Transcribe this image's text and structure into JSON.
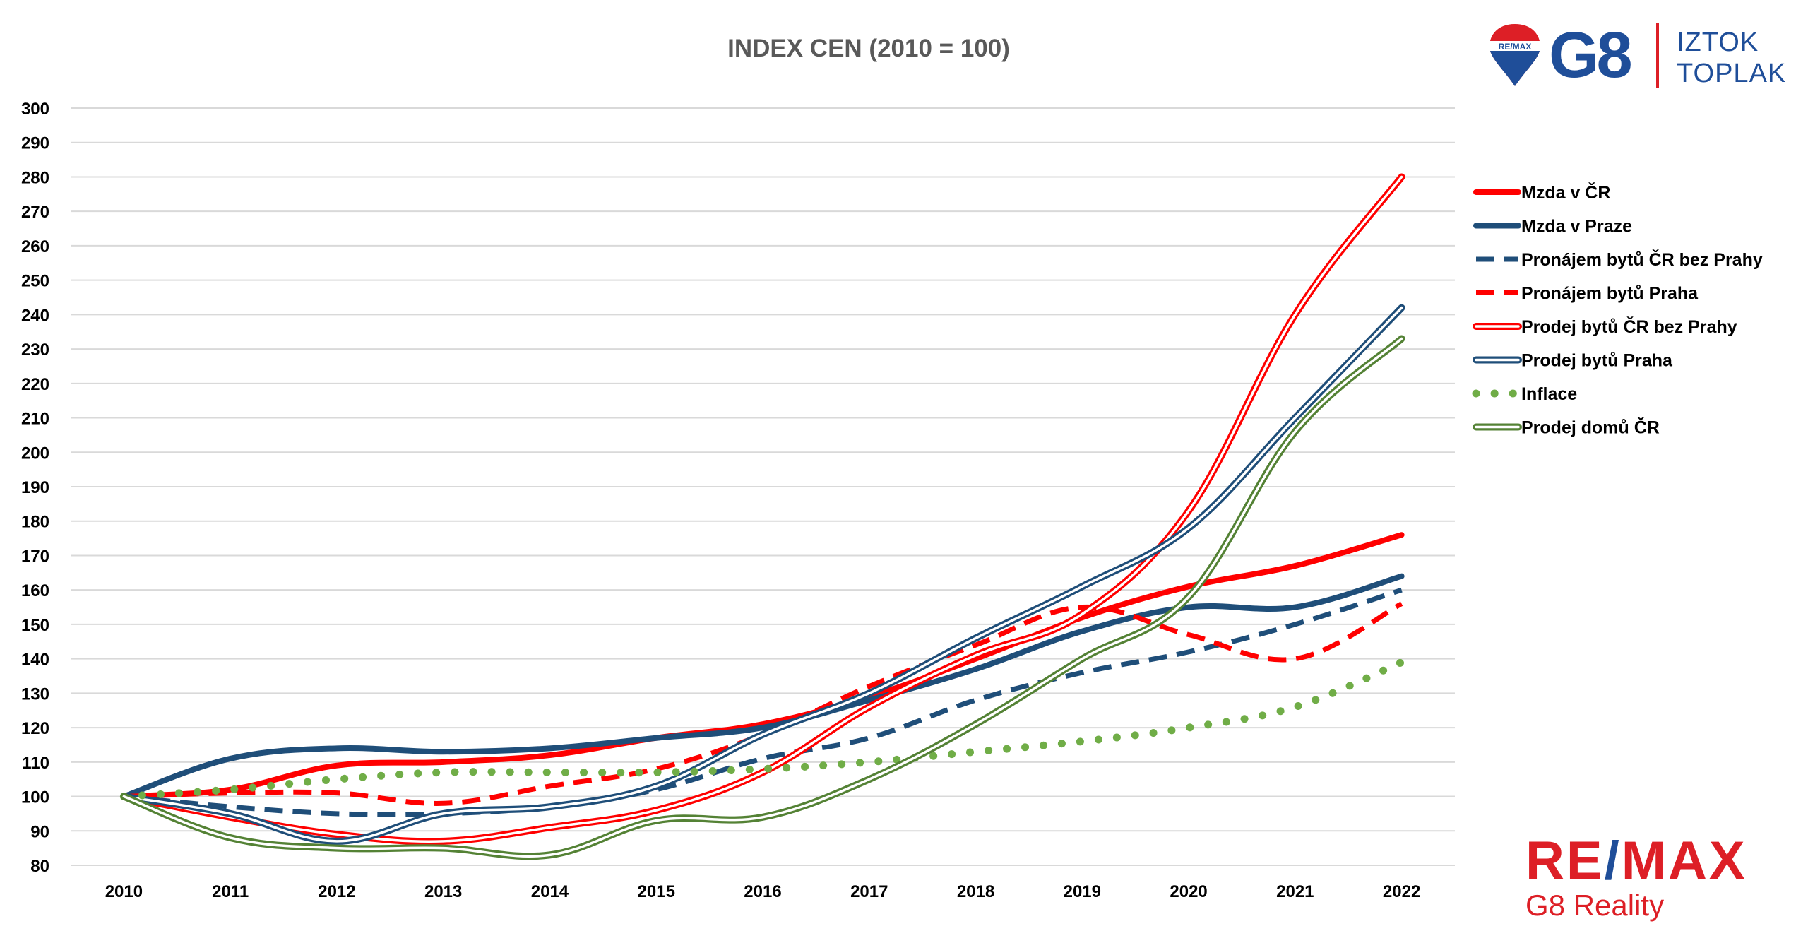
{
  "chart_data": {
    "type": "line",
    "title": "INDEX CEN (2010 = 100)",
    "xlabel": "",
    "ylabel": "",
    "x": [
      "2010",
      "2011",
      "2012",
      "2013",
      "2014",
      "2015",
      "2016",
      "2017",
      "2018",
      "2019",
      "2020",
      "2021",
      "2022"
    ],
    "ylim": [
      80,
      300
    ],
    "yticks": [
      80,
      90,
      100,
      110,
      120,
      130,
      140,
      150,
      160,
      170,
      180,
      190,
      200,
      210,
      220,
      230,
      240,
      250,
      260,
      270,
      280,
      290,
      300
    ],
    "grid": true,
    "legend_position": "right",
    "series": [
      {
        "name": "Mzda v ČR",
        "style": "solid",
        "color": "#ff0000",
        "values": [
          100,
          102,
          109,
          110,
          112,
          117,
          121,
          129,
          140,
          152,
          161,
          167,
          176
        ]
      },
      {
        "name": "Mzda v Praze",
        "style": "solid",
        "color": "#1f4e79",
        "values": [
          100,
          111,
          114,
          113,
          114,
          117,
          120,
          128,
          137,
          148,
          155,
          155,
          164
        ]
      },
      {
        "name": "Pronájem bytů ČR bez Prahy",
        "style": "dashed",
        "color": "#1f4e79",
        "values": [
          100,
          97,
          95,
          95,
          97,
          102,
          111,
          117,
          128,
          136,
          142,
          150,
          160
        ]
      },
      {
        "name": "Pronájem bytů Praha",
        "style": "dashed",
        "color": "#ff0000",
        "values": [
          100,
          101,
          101,
          98,
          103,
          108,
          118,
          132,
          144,
          155,
          147,
          140,
          156
        ]
      },
      {
        "name": "Prodej bytů ČR bez Prahy",
        "style": "double",
        "color": "#ff0000",
        "values": [
          100,
          94,
          89,
          87,
          91,
          96,
          107,
          126,
          141,
          153,
          183,
          240,
          280
        ]
      },
      {
        "name": "Prodej bytů Praha",
        "style": "double",
        "color": "#1f4e79",
        "values": [
          100,
          95,
          87,
          95,
          97,
          103,
          118,
          130,
          146,
          161,
          178,
          210,
          242
        ]
      },
      {
        "name": "Inflace",
        "style": "dotted",
        "color": "#70ad47",
        "values": [
          100,
          102,
          105,
          107,
          107,
          107,
          108,
          110,
          113,
          116,
          120,
          126,
          139
        ]
      },
      {
        "name": "Prodej domů ČR",
        "style": "double",
        "color": "#548235",
        "values": [
          100,
          88,
          85,
          85,
          83,
          93,
          94,
          105,
          121,
          140,
          158,
          206,
          233
        ]
      }
    ]
  },
  "brand": {
    "top_logo_mark": "G8",
    "top_logo_name_line1": "IZTOK",
    "top_logo_name_line2": "TOPLAK",
    "balloon_text": "RE/MAX",
    "bottom_logo_re": "RE",
    "bottom_logo_slash": "/",
    "bottom_logo_max": "MAX",
    "bottom_logo_sub": "G8 Reality",
    "colors": {
      "red": "#dd1f26",
      "blue": "#1f4e99"
    }
  }
}
